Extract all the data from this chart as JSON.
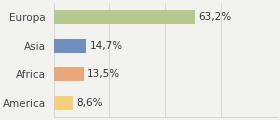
{
  "categories": [
    "Europa",
    "Asia",
    "Africa",
    "America"
  ],
  "values": [
    63.2,
    14.7,
    13.5,
    8.6
  ],
  "labels": [
    "63,2%",
    "14,7%",
    "13,5%",
    "8,6%"
  ],
  "bar_colors": [
    "#b5c98e",
    "#6f8fbf",
    "#e8a87c",
    "#f5d07a"
  ],
  "background_color": "#f2f2ee",
  "xlim": [
    0,
    100
  ],
  "bar_height": 0.5,
  "label_fontsize": 7.5,
  "tick_fontsize": 7.5
}
